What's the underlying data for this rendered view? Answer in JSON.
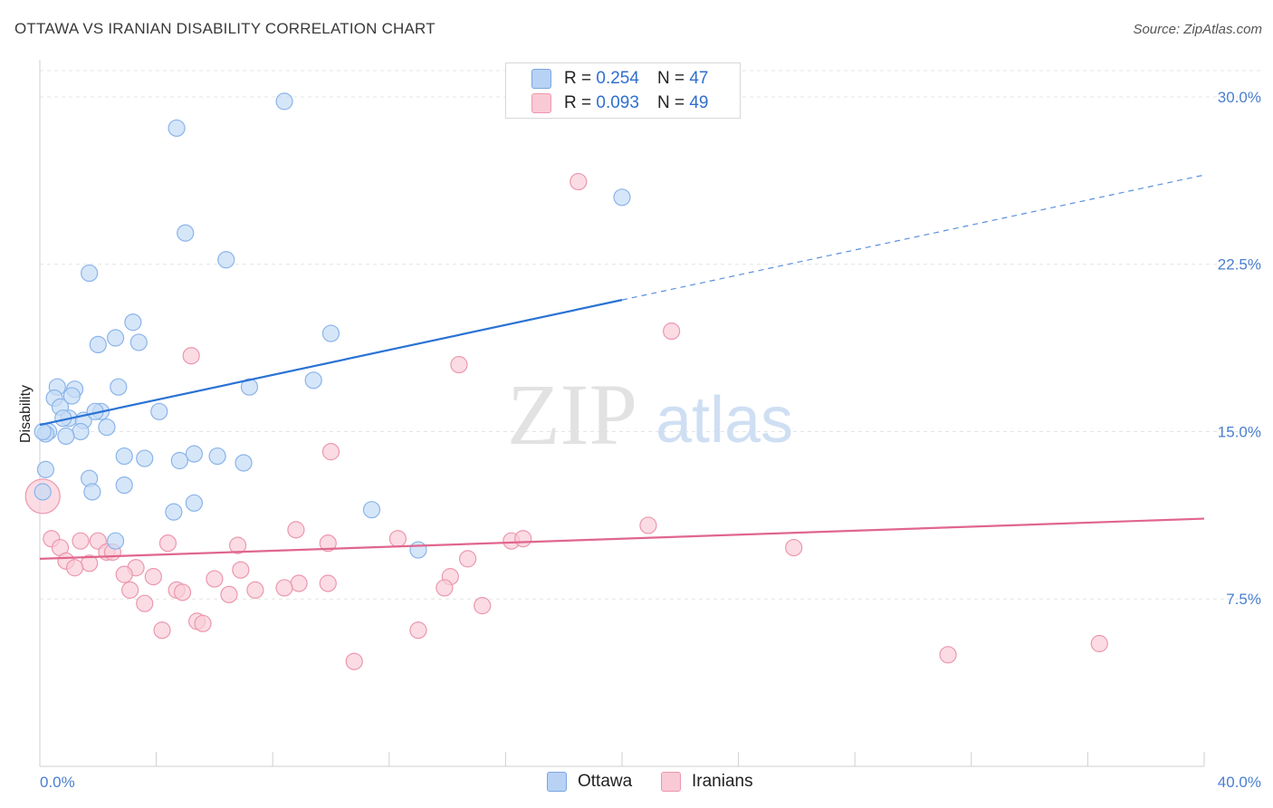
{
  "title": "OTTAWA VS IRANIAN DISABILITY CORRELATION CHART",
  "source": "Source: ZipAtlas.com",
  "watermark": {
    "zip": "ZIP",
    "atlas": "atlas"
  },
  "legend": {
    "rows": [
      {
        "r_label": "R =",
        "r_value": "0.254",
        "n_label": "N =",
        "n_value": "47",
        "color": "#b8d2f5",
        "border": "#7aa5e0"
      },
      {
        "r_label": "R =",
        "r_value": "0.093",
        "n_label": "N =",
        "n_value": "49",
        "color": "#f9c9d6",
        "border": "#ec97ae"
      }
    ]
  },
  "bottom_legend": [
    {
      "label": "Ottawa",
      "color": "#b8d2f5",
      "border": "#7aa5e0"
    },
    {
      "label": "Iranians",
      "color": "#f9c9d6",
      "border": "#ec97ae"
    }
  ],
  "chart_data": {
    "type": "scatter",
    "ylabel": "Disability",
    "xlim": [
      0,
      40
    ],
    "ylim": [
      0,
      31.5
    ],
    "x_tick_labels": [
      "0.0%",
      "40.0%"
    ],
    "y_ticks": [
      7.5,
      15.0,
      22.5,
      30.0
    ],
    "y_tick_labels": [
      "7.5%",
      "15.0%",
      "22.5%",
      "30.0%"
    ],
    "grid": "horizontal dashed",
    "series": [
      {
        "name": "Ottawa",
        "color": "#8ab4ea",
        "fill": "#c5dbf7",
        "trend": {
          "x0": 0,
          "y0": 15.3,
          "x1": 20,
          "y1": 20.9,
          "dash_x1": 40,
          "dash_y1": 26.5
        },
        "points": [
          [
            8.4,
            29.8
          ],
          [
            4.7,
            28.6
          ],
          [
            20.0,
            25.5
          ],
          [
            5.0,
            23.9
          ],
          [
            6.4,
            22.7
          ],
          [
            1.7,
            22.1
          ],
          [
            3.2,
            19.9
          ],
          [
            10.0,
            19.4
          ],
          [
            2.6,
            19.2
          ],
          [
            2.0,
            18.9
          ],
          [
            3.4,
            19.0
          ],
          [
            9.4,
            17.3
          ],
          [
            0.6,
            17.0
          ],
          [
            1.2,
            16.9
          ],
          [
            2.7,
            17.0
          ],
          [
            7.2,
            17.0
          ],
          [
            0.5,
            16.5
          ],
          [
            1.1,
            16.6
          ],
          [
            0.7,
            16.1
          ],
          [
            4.1,
            15.9
          ],
          [
            2.1,
            15.9
          ],
          [
            1.0,
            15.6
          ],
          [
            0.8,
            15.6
          ],
          [
            1.5,
            15.5
          ],
          [
            1.9,
            15.9
          ],
          [
            2.3,
            15.2
          ],
          [
            0.3,
            15.0
          ],
          [
            1.4,
            15.0
          ],
          [
            0.9,
            14.8
          ],
          [
            0.2,
            14.9
          ],
          [
            2.9,
            13.9
          ],
          [
            3.6,
            13.8
          ],
          [
            5.3,
            14.0
          ],
          [
            6.1,
            13.9
          ],
          [
            4.8,
            13.7
          ],
          [
            7.0,
            13.6
          ],
          [
            0.2,
            13.3
          ],
          [
            1.7,
            12.9
          ],
          [
            2.9,
            12.6
          ],
          [
            1.8,
            12.3
          ],
          [
            0.1,
            12.3
          ],
          [
            5.3,
            11.8
          ],
          [
            4.6,
            11.4
          ],
          [
            11.4,
            11.5
          ],
          [
            2.6,
            10.1
          ],
          [
            13.0,
            9.7
          ],
          [
            0.1,
            15.0
          ]
        ]
      },
      {
        "name": "Iranians",
        "color": "#ec97ae",
        "fill": "#f9cdd9",
        "trend": {
          "x0": 0,
          "y0": 9.3,
          "x1": 40,
          "y1": 11.1
        },
        "points": [
          [
            18.5,
            26.2
          ],
          [
            21.7,
            19.5
          ],
          [
            5.2,
            18.4
          ],
          [
            14.4,
            18.0
          ],
          [
            10.0,
            14.1
          ],
          [
            20.9,
            10.8
          ],
          [
            8.8,
            10.6
          ],
          [
            12.3,
            10.2
          ],
          [
            16.2,
            10.1
          ],
          [
            16.6,
            10.2
          ],
          [
            0.4,
            10.2
          ],
          [
            1.4,
            10.1
          ],
          [
            2.0,
            10.1
          ],
          [
            4.4,
            10.0
          ],
          [
            9.9,
            10.0
          ],
          [
            6.8,
            9.9
          ],
          [
            0.7,
            9.8
          ],
          [
            2.3,
            9.6
          ],
          [
            2.5,
            9.6
          ],
          [
            25.9,
            9.8
          ],
          [
            0.9,
            9.2
          ],
          [
            1.7,
            9.1
          ],
          [
            14.7,
            9.3
          ],
          [
            1.2,
            8.9
          ],
          [
            3.3,
            8.9
          ],
          [
            6.9,
            8.8
          ],
          [
            2.9,
            8.6
          ],
          [
            3.9,
            8.5
          ],
          [
            14.1,
            8.5
          ],
          [
            6.0,
            8.4
          ],
          [
            8.9,
            8.2
          ],
          [
            9.9,
            8.2
          ],
          [
            8.4,
            8.0
          ],
          [
            13.9,
            8.0
          ],
          [
            3.1,
            7.9
          ],
          [
            4.7,
            7.9
          ],
          [
            7.4,
            7.9
          ],
          [
            4.9,
            7.8
          ],
          [
            6.5,
            7.7
          ],
          [
            3.6,
            7.3
          ],
          [
            15.2,
            7.2
          ],
          [
            5.4,
            6.5
          ],
          [
            5.6,
            6.4
          ],
          [
            4.2,
            6.1
          ],
          [
            13.0,
            6.1
          ],
          [
            36.4,
            5.5
          ],
          [
            31.2,
            5.0
          ],
          [
            10.8,
            4.7
          ],
          [
            0.1,
            12.1
          ]
        ]
      }
    ]
  }
}
